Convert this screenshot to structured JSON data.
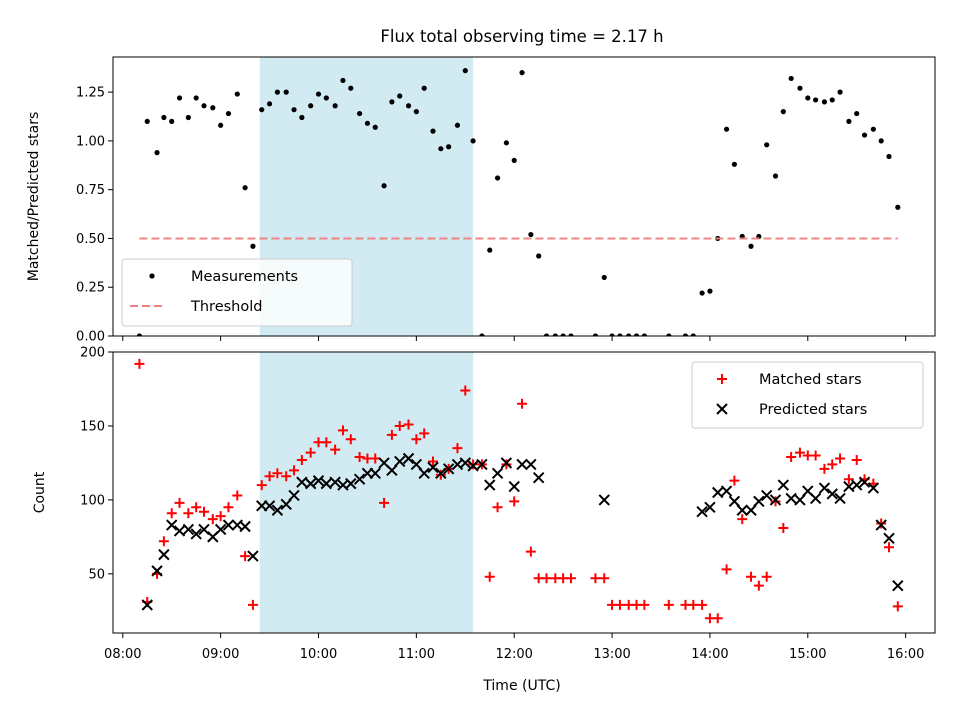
{
  "chart_data": {
    "title": "Flux total observing time = 2.17 h",
    "xlabel": "Time (UTC)",
    "x_unit": "hours UTC",
    "xlim": [
      7.9,
      16.3
    ],
    "x_ticks": [
      8,
      9,
      10,
      11,
      12,
      13,
      14,
      15,
      16
    ],
    "x_tick_labels": [
      "08:00",
      "09:00",
      "10:00",
      "11:00",
      "12:00",
      "13:00",
      "14:00",
      "15:00",
      "16:00"
    ],
    "highlight_span": {
      "start": 9.4,
      "end": 11.58,
      "color": "#add8e6"
    },
    "panels": [
      {
        "type": "scatter",
        "ylabel": "Matched/Predicted stars",
        "ylim": [
          0,
          1.43
        ],
        "y_ticks": [
          0,
          0.25,
          0.5,
          0.75,
          1.0,
          1.25
        ],
        "y_tick_labels": [
          "0.00",
          "0.25",
          "0.50",
          "0.75",
          "1.00",
          "1.25"
        ],
        "legend_position": "lower-left",
        "series": [
          {
            "name": "Measurements",
            "marker": "dot",
            "color": "#000000",
            "x": [
              8.17,
              8.25,
              8.35,
              8.42,
              8.5,
              8.58,
              8.67,
              8.75,
              8.83,
              8.92,
              9.0,
              9.08,
              9.17,
              9.25,
              9.33,
              9.42,
              9.5,
              9.58,
              9.67,
              9.75,
              9.83,
              9.92,
              10.0,
              10.08,
              10.17,
              10.25,
              10.33,
              10.42,
              10.5,
              10.58,
              10.67,
              10.75,
              10.83,
              10.92,
              11.0,
              11.08,
              11.17,
              11.25,
              11.33,
              11.42,
              11.5,
              11.58,
              11.67,
              11.75,
              11.83,
              11.92,
              12.0,
              12.08,
              12.17,
              12.25,
              12.33,
              12.42,
              12.5,
              12.58,
              12.83,
              12.92,
              13.0,
              13.08,
              13.17,
              13.25,
              13.33,
              13.58,
              13.75,
              13.83,
              13.92,
              14.0,
              14.08,
              14.17,
              14.25,
              14.33,
              14.42,
              14.5,
              14.58,
              14.67,
              14.75,
              14.83,
              14.92,
              15.0,
              15.08,
              15.17,
              15.25,
              15.33,
              15.42,
              15.5,
              15.58,
              15.67,
              15.75,
              15.83,
              15.92
            ],
            "y": [
              0.0,
              1.1,
              0.94,
              1.12,
              1.1,
              1.22,
              1.12,
              1.22,
              1.18,
              1.17,
              1.08,
              1.14,
              1.24,
              0.76,
              0.46,
              1.16,
              1.19,
              1.25,
              1.25,
              1.16,
              1.12,
              1.18,
              1.24,
              1.22,
              1.18,
              1.31,
              1.27,
              1.14,
              1.09,
              1.07,
              0.77,
              1.2,
              1.23,
              1.18,
              1.15,
              1.27,
              1.05,
              0.96,
              0.97,
              1.08,
              1.36,
              1.0,
              0.0,
              0.44,
              0.81,
              0.99,
              0.9,
              1.35,
              0.52,
              0.41,
              0.0,
              0.0,
              0.0,
              0.0,
              0.0,
              0.3,
              0.0,
              0.0,
              0.0,
              0.0,
              0.0,
              0.0,
              0.0,
              0.0,
              0.22,
              0.23,
              0.5,
              1.06,
              0.88,
              0.51,
              0.46,
              0.51,
              0.98,
              0.82,
              1.15,
              1.32,
              1.27,
              1.22,
              1.21,
              1.2,
              1.21,
              1.25,
              1.1,
              1.14,
              1.03,
              1.06,
              1.0,
              0.92,
              0.66
            ]
          },
          {
            "name": "Threshold",
            "marker": "dashed-line",
            "color": "#f08080",
            "x": [
              8.17,
              15.92
            ],
            "y": [
              0.5,
              0.5
            ]
          }
        ]
      },
      {
        "type": "scatter",
        "ylabel": "Count",
        "ylim": [
          10,
          200
        ],
        "y_ticks": [
          50,
          100,
          150,
          200
        ],
        "y_tick_labels": [
          "50",
          "100",
          "150",
          "200"
        ],
        "legend_position": "upper-right",
        "series": [
          {
            "name": "Matched stars",
            "marker": "plus",
            "color": "#ff0000",
            "x": [
              8.17,
              8.25,
              8.35,
              8.42,
              8.5,
              8.58,
              8.67,
              8.75,
              8.83,
              8.92,
              9.0,
              9.08,
              9.17,
              9.25,
              9.33,
              9.42,
              9.5,
              9.58,
              9.67,
              9.75,
              9.83,
              9.92,
              10.0,
              10.08,
              10.17,
              10.25,
              10.33,
              10.42,
              10.5,
              10.58,
              10.67,
              10.75,
              10.83,
              10.92,
              11.0,
              11.08,
              11.17,
              11.25,
              11.33,
              11.42,
              11.5,
              11.58,
              11.67,
              11.75,
              11.83,
              11.92,
              12.0,
              12.08,
              12.17,
              12.25,
              12.33,
              12.42,
              12.5,
              12.58,
              12.83,
              12.92,
              13.0,
              13.08,
              13.17,
              13.25,
              13.33,
              13.58,
              13.75,
              13.83,
              13.92,
              14.0,
              14.08,
              14.17,
              14.25,
              14.33,
              14.42,
              14.5,
              14.58,
              14.67,
              14.75,
              14.83,
              14.92,
              15.0,
              15.08,
              15.17,
              15.25,
              15.33,
              15.42,
              15.5,
              15.58,
              15.67,
              15.75,
              15.83,
              15.92
            ],
            "y": [
              192,
              31,
              50,
              72,
              91,
              98,
              91,
              95,
              92,
              87,
              89,
              95,
              103,
              62,
              29,
              110,
              116,
              118,
              116,
              120,
              127,
              132,
              139,
              139,
              134,
              147,
              141,
              129,
              128,
              128,
              98,
              144,
              150,
              151,
              141,
              145,
              126,
              117,
              121,
              135,
              174,
              124,
              124,
              48,
              95,
              124,
              99,
              165,
              65,
              47,
              47,
              47,
              47,
              47,
              47,
              47,
              29,
              29,
              29,
              29,
              29,
              29,
              29,
              29,
              29,
              20,
              20,
              53,
              113,
              87,
              48,
              42,
              48,
              99,
              81,
              129,
              132,
              130,
              130,
              121,
              124,
              128,
              114,
              127,
              114,
              111,
              84,
              68,
              28
            ]
          },
          {
            "name": "Predicted stars",
            "marker": "x",
            "color": "#000000",
            "x": [
              8.25,
              8.35,
              8.42,
              8.5,
              8.58,
              8.67,
              8.75,
              8.83,
              8.92,
              9.0,
              9.08,
              9.17,
              9.25,
              9.33,
              9.42,
              9.5,
              9.58,
              9.67,
              9.75,
              9.83,
              9.92,
              10.0,
              10.08,
              10.17,
              10.25,
              10.33,
              10.42,
              10.5,
              10.58,
              10.67,
              10.75,
              10.83,
              10.92,
              11.0,
              11.08,
              11.17,
              11.25,
              11.33,
              11.42,
              11.5,
              11.58,
              11.67,
              11.75,
              11.83,
              11.92,
              12.0,
              12.08,
              12.17,
              12.25,
              12.92,
              13.92,
              14.0,
              14.08,
              14.17,
              14.25,
              14.33,
              14.42,
              14.5,
              14.58,
              14.67,
              14.75,
              14.83,
              14.92,
              15.0,
              15.08,
              15.17,
              15.25,
              15.33,
              15.42,
              15.5,
              15.58,
              15.67,
              15.75,
              15.83,
              15.92
            ],
            "y": [
              29,
              52,
              63,
              83,
              79,
              80,
              77,
              80,
              75,
              80,
              83,
              83,
              82,
              62,
              96,
              96,
              93,
              97,
              103,
              112,
              111,
              113,
              111,
              112,
              110,
              111,
              114,
              118,
              118,
              125,
              120,
              126,
              128,
              124,
              118,
              122,
              118,
              121,
              124,
              125,
              123,
              124,
              110,
              118,
              125,
              109,
              124,
              124,
              115,
              100,
              92,
              95,
              105,
              106,
              99,
              93,
              93,
              99,
              103,
              100,
              110,
              101,
              100,
              106,
              101,
              108,
              104,
              101,
              109,
              110,
              112,
              108,
              83,
              74,
              42
            ]
          }
        ]
      }
    ]
  }
}
